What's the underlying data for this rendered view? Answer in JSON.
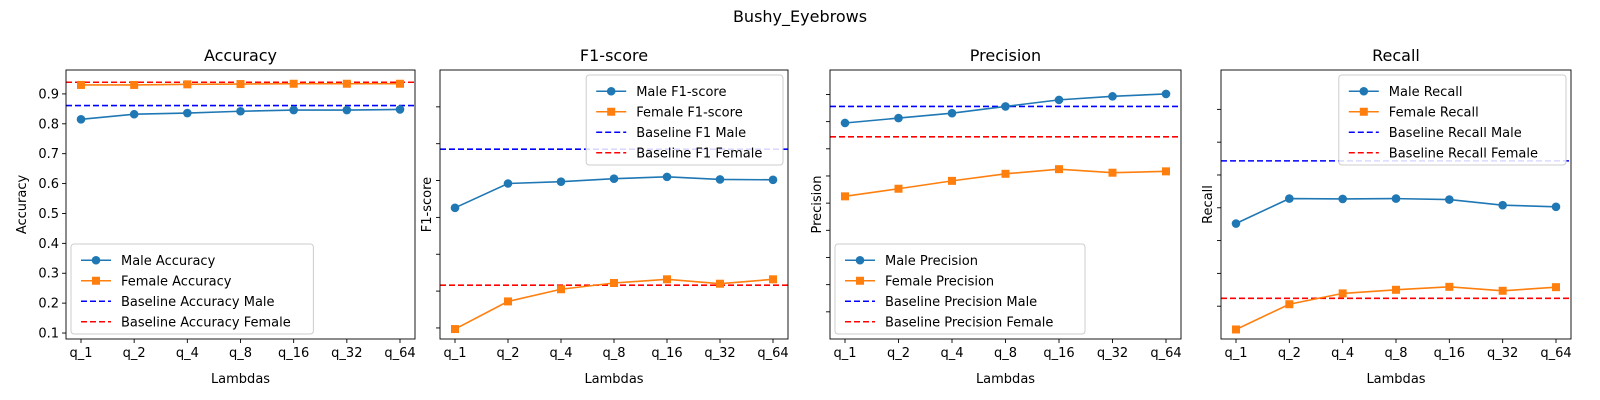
{
  "figure": {
    "suptitle": "Bushy_Eyebrows"
  },
  "colors": {
    "male": "#1f77b4",
    "female": "#ff7f0e",
    "baseline_male": "#0000ff",
    "baseline_female": "#ff0000"
  },
  "chart_data": [
    {
      "type": "line",
      "title": "Accuracy",
      "xlabel": "Lambdas",
      "ylabel": "Accuracy",
      "categories": [
        "q_1",
        "q_2",
        "q_4",
        "q_8",
        "q_16",
        "q_32",
        "q_64"
      ],
      "ylim": [
        0.08,
        0.98
      ],
      "yticks": [
        0.1,
        0.2,
        0.3,
        0.4,
        0.5,
        0.6,
        0.7,
        0.8,
        0.9
      ],
      "show_ytick_labels": true,
      "legend_position": "lower-left",
      "series": [
        {
          "name": "Male Accuracy",
          "marker": "circle",
          "values": [
            0.815,
            0.832,
            0.836,
            0.842,
            0.846,
            0.846,
            0.848
          ]
        },
        {
          "name": "Female Accuracy",
          "marker": "square",
          "values": [
            0.93,
            0.93,
            0.932,
            0.933,
            0.934,
            0.934,
            0.934
          ]
        }
      ],
      "baselines": [
        {
          "name": "Baseline Accuracy Male",
          "value": 0.861,
          "key": "male"
        },
        {
          "name": "Baseline Accuracy Female",
          "value": 0.939,
          "key": "female"
        }
      ]
    },
    {
      "type": "line",
      "title": "F1-score",
      "xlabel": "Lambdas",
      "ylabel": "F1-score",
      "categories": [
        "q_1",
        "q_2",
        "q_4",
        "q_8",
        "q_16",
        "q_32",
        "q_64"
      ],
      "ylim": [
        0.17,
        0.9
      ],
      "yticks": [
        0.2,
        0.3,
        0.4,
        0.5,
        0.6,
        0.7,
        0.8
      ],
      "show_ytick_labels": false,
      "legend_position": "upper-right",
      "series": [
        {
          "name": "Male F1-score",
          "marker": "circle",
          "values": [
            0.526,
            0.592,
            0.597,
            0.605,
            0.61,
            0.603,
            0.602
          ]
        },
        {
          "name": "Female F1-score",
          "marker": "square",
          "values": [
            0.197,
            0.272,
            0.305,
            0.322,
            0.332,
            0.32,
            0.332
          ]
        }
      ],
      "baselines": [
        {
          "name": "Baseline F1 Male",
          "value": 0.685,
          "key": "male"
        },
        {
          "name": "Baseline F1 Female",
          "value": 0.316,
          "key": "female"
        }
      ]
    },
    {
      "type": "line",
      "title": "Precision",
      "xlabel": "Lambdas",
      "ylabel": "Precision",
      "categories": [
        "q_1",
        "q_2",
        "q_4",
        "q_8",
        "q_16",
        "q_32",
        "q_64"
      ],
      "ylim": [
        0.0,
        0.99
      ],
      "yticks": [
        0.1,
        0.2,
        0.3,
        0.4,
        0.5,
        0.6,
        0.7,
        0.8,
        0.9
      ],
      "show_ytick_labels": false,
      "legend_position": "lower-left",
      "series": [
        {
          "name": "Male Precision",
          "marker": "circle",
          "values": [
            0.795,
            0.813,
            0.831,
            0.856,
            0.88,
            0.893,
            0.902
          ]
        },
        {
          "name": "Female Precision",
          "marker": "square",
          "values": [
            0.525,
            0.553,
            0.582,
            0.608,
            0.625,
            0.612,
            0.617
          ]
        }
      ],
      "baselines": [
        {
          "name": "Baseline Precision Male",
          "value": 0.856,
          "key": "male"
        },
        {
          "name": "Baseline Precision Female",
          "value": 0.744,
          "key": "female"
        }
      ]
    },
    {
      "type": "line",
      "title": "Recall",
      "xlabel": "Lambdas",
      "ylabel": "Recall",
      "categories": [
        "q_1",
        "q_2",
        "q_4",
        "q_8",
        "q_16",
        "q_32",
        "q_64"
      ],
      "ylim": [
        0.1,
        0.92
      ],
      "yticks": [
        0.2,
        0.3,
        0.4,
        0.5,
        0.6,
        0.7,
        0.8
      ],
      "show_ytick_labels": false,
      "legend_position": "upper-right",
      "series": [
        {
          "name": "Male Recall",
          "marker": "circle",
          "values": [
            0.452,
            0.528,
            0.527,
            0.528,
            0.525,
            0.508,
            0.503
          ]
        },
        {
          "name": "Female Recall",
          "marker": "square",
          "values": [
            0.129,
            0.206,
            0.239,
            0.25,
            0.259,
            0.247,
            0.258
          ]
        }
      ],
      "baselines": [
        {
          "name": "Baseline Recall Male",
          "value": 0.643,
          "key": "male"
        },
        {
          "name": "Baseline Recall Female",
          "value": 0.224,
          "key": "female"
        }
      ]
    }
  ]
}
